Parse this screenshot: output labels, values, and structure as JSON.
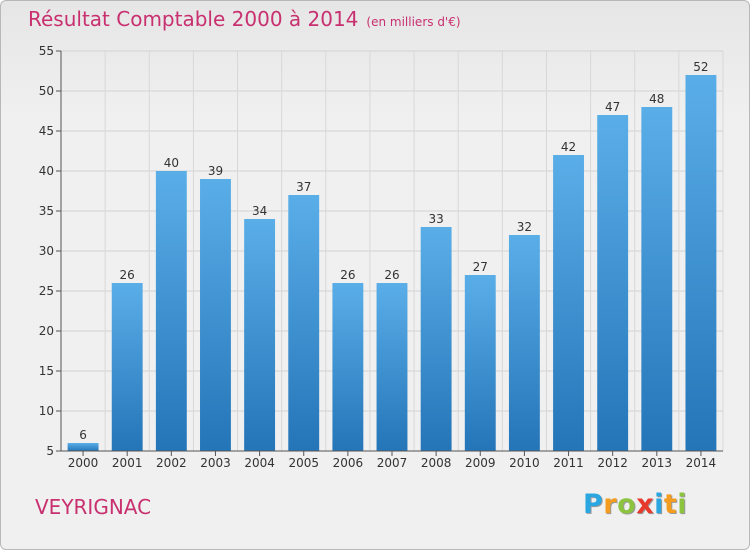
{
  "header": {
    "title": "Résultat Comptable 2000 à 2014",
    "subtitle": "(en milliers d'€)"
  },
  "commune": "VEYRIGNAC",
  "logo": {
    "letters": [
      {
        "ch": "P",
        "color": "#2aa6e0"
      },
      {
        "ch": "r",
        "color": "#f39c1d"
      },
      {
        "ch": "o",
        "color": "#8cc43f"
      },
      {
        "ch": "x",
        "color": "#e8392d"
      },
      {
        "ch": "i",
        "color": "#2aa6e0"
      },
      {
        "ch": "t",
        "color": "#f39c1d"
      },
      {
        "ch": "i",
        "color": "#8cc43f"
      }
    ]
  },
  "chart_data": {
    "type": "bar",
    "title": "Résultat Comptable 2000 à 2014",
    "subtitle": "(en milliers d'€)",
    "categories": [
      "2000",
      "2001",
      "2002",
      "2003",
      "2004",
      "2005",
      "2006",
      "2007",
      "2008",
      "2009",
      "2010",
      "2011",
      "2012",
      "2013",
      "2014"
    ],
    "values": [
      6,
      26,
      40,
      39,
      34,
      37,
      26,
      26,
      33,
      27,
      32,
      42,
      47,
      48,
      52
    ],
    "ylim": [
      5,
      55
    ],
    "yticks": [
      5,
      10,
      15,
      20,
      25,
      30,
      35,
      40,
      45,
      50,
      55
    ],
    "grid": true,
    "bar_color": "#3b93d8",
    "value_labels": true
  }
}
